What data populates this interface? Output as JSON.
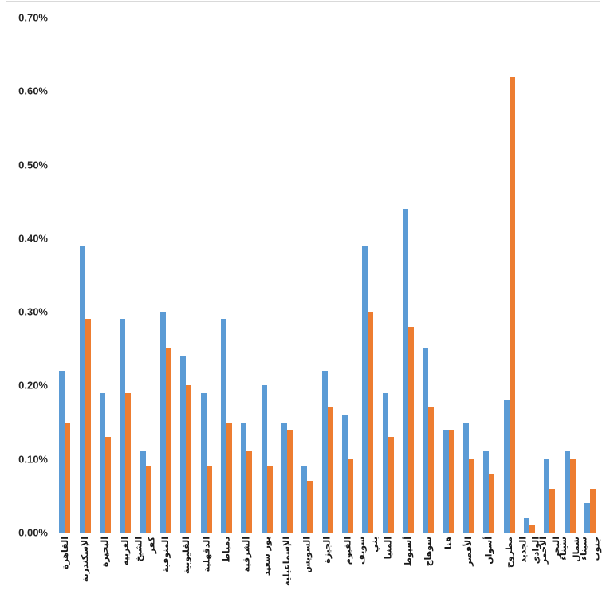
{
  "chart_data": {
    "type": "bar",
    "title": "",
    "xlabel": "",
    "ylabel": "",
    "grid": false,
    "legend": "none",
    "ylim": [
      0,
      0.7
    ],
    "y_tick_labels": [
      "0.00%",
      "0.10%",
      "0.20%",
      "0.30%",
      "0.40%",
      "0.50%",
      "0.60%",
      "0.70%"
    ],
    "value_unit": "percent",
    "categories": [
      {
        "label": "القاهرة",
        "wrap": false
      },
      {
        "label": "الإسكندرية",
        "wrap": false
      },
      {
        "label": "البحيرة",
        "wrap": false
      },
      {
        "label": "الغربية",
        "wrap": false
      },
      {
        "label": "كفر الشيخ",
        "wrap": true
      },
      {
        "label": "المنوفية",
        "wrap": false
      },
      {
        "label": "القليوبية",
        "wrap": false
      },
      {
        "label": "الدقهلية",
        "wrap": false
      },
      {
        "label": "دمياط",
        "wrap": false
      },
      {
        "label": "الشرقية",
        "wrap": false
      },
      {
        "label": "بور سعيد",
        "wrap": false
      },
      {
        "label": "الإسماعيلية",
        "wrap": false
      },
      {
        "label": "السويس",
        "wrap": false
      },
      {
        "label": "الجيزة",
        "wrap": false
      },
      {
        "label": "الفيوم",
        "wrap": false
      },
      {
        "label": "بني سويف",
        "wrap": true
      },
      {
        "label": "المنيا",
        "wrap": false
      },
      {
        "label": "أسيوط",
        "wrap": false
      },
      {
        "label": "سوهاج",
        "wrap": false
      },
      {
        "label": "قنا",
        "wrap": false
      },
      {
        "label": "الأقصر",
        "wrap": false
      },
      {
        "label": "أسوان",
        "wrap": false
      },
      {
        "label": "مطروح",
        "wrap": false
      },
      {
        "label": "الوادي الجديد",
        "wrap": true
      },
      {
        "label": "البحر الأحمر",
        "wrap": true
      },
      {
        "label": "شمال سيناء",
        "wrap": true
      },
      {
        "label": "جنوب سيناء",
        "wrap": true
      }
    ],
    "series": [
      {
        "color_name": "blue",
        "color": "#5B9BD5",
        "values": [
          0.22,
          0.39,
          0.19,
          0.29,
          0.11,
          0.3,
          0.24,
          0.19,
          0.29,
          0.15,
          0.2,
          0.15,
          0.09,
          0.22,
          0.16,
          0.39,
          0.19,
          0.44,
          0.25,
          0.14,
          0.15,
          0.11,
          0.18,
          0.02,
          0.1,
          0.11,
          0.04
        ]
      },
      {
        "color_name": "orange",
        "color": "#ED7D31",
        "values": [
          0.15,
          0.29,
          0.13,
          0.19,
          0.09,
          0.25,
          0.2,
          0.09,
          0.15,
          0.11,
          0.09,
          0.14,
          0.07,
          0.17,
          0.1,
          0.3,
          0.13,
          0.28,
          0.17,
          0.14,
          0.1,
          0.08,
          0.62,
          0.01,
          0.06,
          0.1,
          0.06
        ]
      }
    ],
    "colors": {
      "axis_line": "#c6c6c6",
      "frame_border": "#d9d9d9",
      "tick_text": "#262626",
      "label_text": "#1a1a1a",
      "background": "#ffffff"
    }
  }
}
